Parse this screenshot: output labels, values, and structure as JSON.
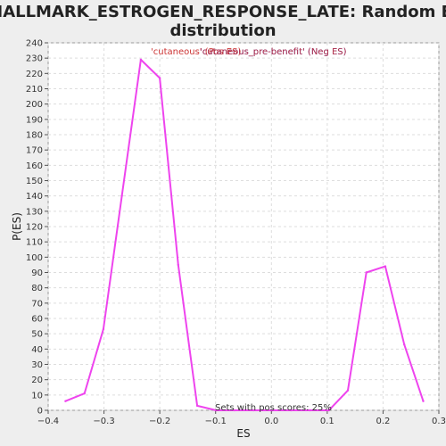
{
  "chart_data": {
    "type": "line",
    "title_line1": "HALLMARK_ESTROGEN_RESPONSE_LATE: Random ES",
    "title_line2": "distribution",
    "xlabel": "ES",
    "ylabel": "P(ES)",
    "xlim": [
      -0.4,
      0.3
    ],
    "ylim": [
      0,
      240
    ],
    "x_ticks": [
      -0.4,
      -0.3,
      -0.2,
      -0.1,
      0.0,
      0.1,
      0.2,
      0.3
    ],
    "x_tick_labels": [
      "−0.4",
      "−0.3",
      "−0.2",
      "−0.1",
      "0.0",
      "0.1",
      "0.2",
      "0.3"
    ],
    "y_ticks": [
      0,
      10,
      20,
      30,
      40,
      50,
      60,
      70,
      80,
      90,
      100,
      110,
      120,
      130,
      140,
      150,
      160,
      170,
      180,
      190,
      200,
      210,
      220,
      230,
      240
    ],
    "y_tick_labels": [
      "0",
      "10",
      "20",
      "30",
      "40",
      "50",
      "60",
      "70",
      "80",
      "90",
      "100",
      "110",
      "120",
      "130",
      "140",
      "150",
      "160",
      "170",
      "180",
      "190",
      "200",
      "210",
      "220",
      "230",
      "240"
    ],
    "grid": true,
    "line_color": "#ee44ee",
    "series": [
      {
        "x": [
          -0.369,
          -0.335,
          -0.301,
          -0.268,
          -0.234,
          -0.2,
          -0.167,
          -0.133,
          -0.099,
          -0.066,
          -0.032,
          0.002,
          0.035,
          0.069,
          0.103,
          0.137,
          0.17,
          0.204,
          0.238,
          0.272
        ],
        "y": [
          6,
          11,
          53,
          140,
          229,
          217,
          95,
          3,
          0,
          0,
          0,
          0,
          0,
          0,
          0,
          13,
          90,
          94,
          43,
          6
        ]
      }
    ],
    "legend": [
      {
        "text": "'cutaneous' (Pos ES)",
        "color": "#cc3333"
      },
      {
        "text": "'cutaneous_pre-benefit' (Neg ES)",
        "color": "#3333cc"
      }
    ],
    "legend_overlap_text": "'cutaneous_pre-benefit' (Neg ES)",
    "legend_overlap_color": "#cc3333",
    "annotation": "Sets with pos scores: 25%"
  }
}
